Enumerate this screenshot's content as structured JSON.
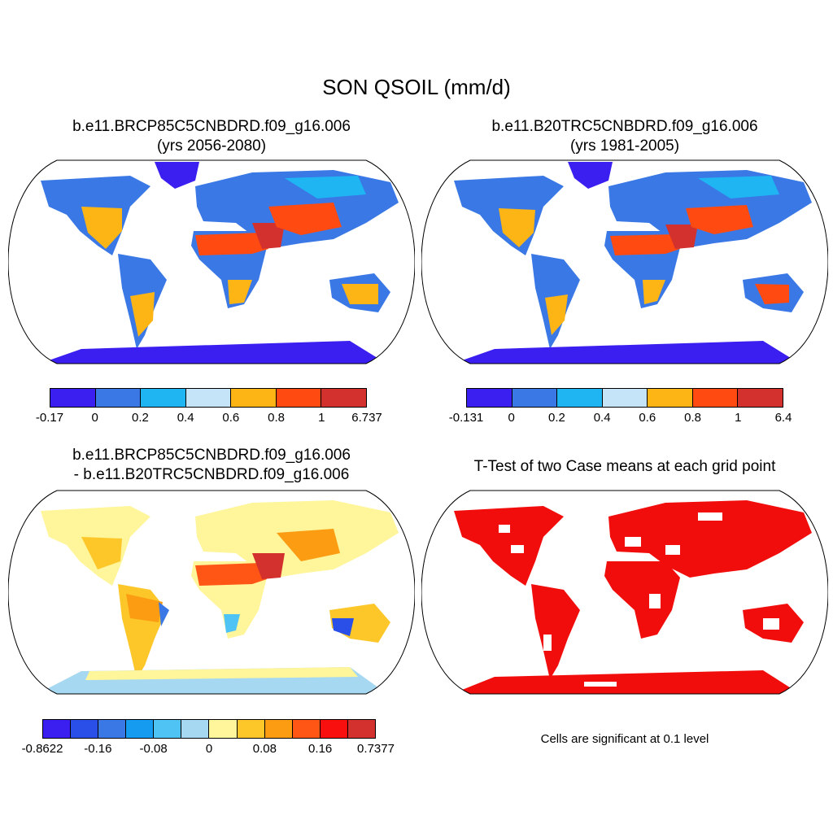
{
  "figure": {
    "title": "SON QSOIL (mm/d)"
  },
  "panels": [
    {
      "case": "b.e11.BRCP85C5CNBDRD.f09_g16.006",
      "years": "(yrs 2056-2080)",
      "colorbar": {
        "colors": [
          "#3a1ff0",
          "#3a78e6",
          "#1fb4f2",
          "#c6e4f7",
          "#fdb515",
          "#ff4b12",
          "#d2312e"
        ],
        "labels": [
          "-0.17",
          "0",
          "0.2",
          "0.4",
          "0.6",
          "0.8",
          "1",
          "6.737"
        ]
      }
    },
    {
      "case": "b.e11.B20TRC5CNBDRD.f09_g16.006",
      "years": "(yrs 1981-2005)",
      "colorbar": {
        "colors": [
          "#3a1ff0",
          "#3a78e6",
          "#1fb4f2",
          "#c6e4f7",
          "#fdb515",
          "#ff4b12",
          "#d2312e"
        ],
        "labels": [
          "-0.131",
          "0",
          "0.2",
          "0.4",
          "0.6",
          "0.8",
          "1",
          "6.4"
        ]
      }
    },
    {
      "case": "b.e11.BRCP85C5CNBDRD.f09_g16.006",
      "case_minus": "- b.e11.B20TRC5CNBDRD.f09_g16.006",
      "colorbar": {
        "colors": [
          "#3a1ff0",
          "#2a4ee8",
          "#3a78e6",
          "#159cf0",
          "#4fc3f4",
          "#a6d8f2",
          "#fff59a",
          "#fdc72a",
          "#fc9c12",
          "#ff5515",
          "#fa0f0f",
          "#d2312e"
        ],
        "labels": [
          "-0.8622",
          "-0.16",
          "-0.08",
          "0",
          "0.08",
          "0.16",
          "0.7377"
        ]
      }
    },
    {
      "title": "T-Test of two Case means at each grid point",
      "note": "Cells are significant at 0.1 level",
      "colors": {
        "significant": "#f20d0d"
      }
    }
  ]
}
